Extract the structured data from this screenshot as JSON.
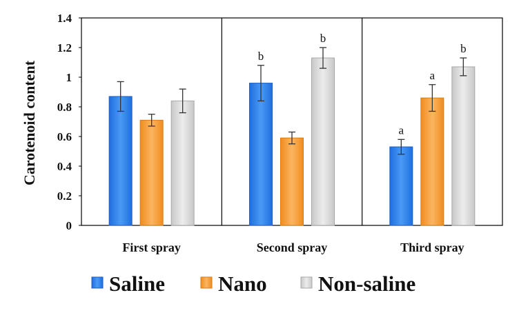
{
  "chart_data": {
    "type": "bar",
    "title": "",
    "xlabel": "",
    "ylabel": "Carotenoid  content",
    "ylim": [
      0,
      1.4
    ],
    "yticks": [
      0,
      0.2,
      0.4,
      0.6,
      0.8,
      1,
      1.2,
      1.4
    ],
    "ytick_labels": [
      "0",
      "0.2",
      "0.4",
      "0.6",
      "0.8",
      "1",
      "1.2",
      "1.4"
    ],
    "grid": false,
    "legend_position": "bottom",
    "categories": [
      "First spray",
      "Second spray",
      "Third spray"
    ],
    "series": [
      {
        "name": "Saline",
        "color": "#2f7fe8",
        "values": [
          0.87,
          0.96,
          0.53
        ],
        "errors": [
          0.1,
          0.12,
          0.05
        ],
        "sig": [
          "",
          "b",
          "a"
        ]
      },
      {
        "name": "Nano",
        "color": "#f7a23b",
        "values": [
          0.71,
          0.59,
          0.86
        ],
        "errors": [
          0.04,
          0.04,
          0.09
        ],
        "sig": [
          "",
          "",
          "a"
        ]
      },
      {
        "name": "Non-saline",
        "color": "#d9d9d9",
        "values": [
          0.84,
          1.13,
          1.07
        ],
        "errors": [
          0.08,
          0.07,
          0.06
        ],
        "sig": [
          "",
          "b",
          "b"
        ]
      }
    ]
  }
}
